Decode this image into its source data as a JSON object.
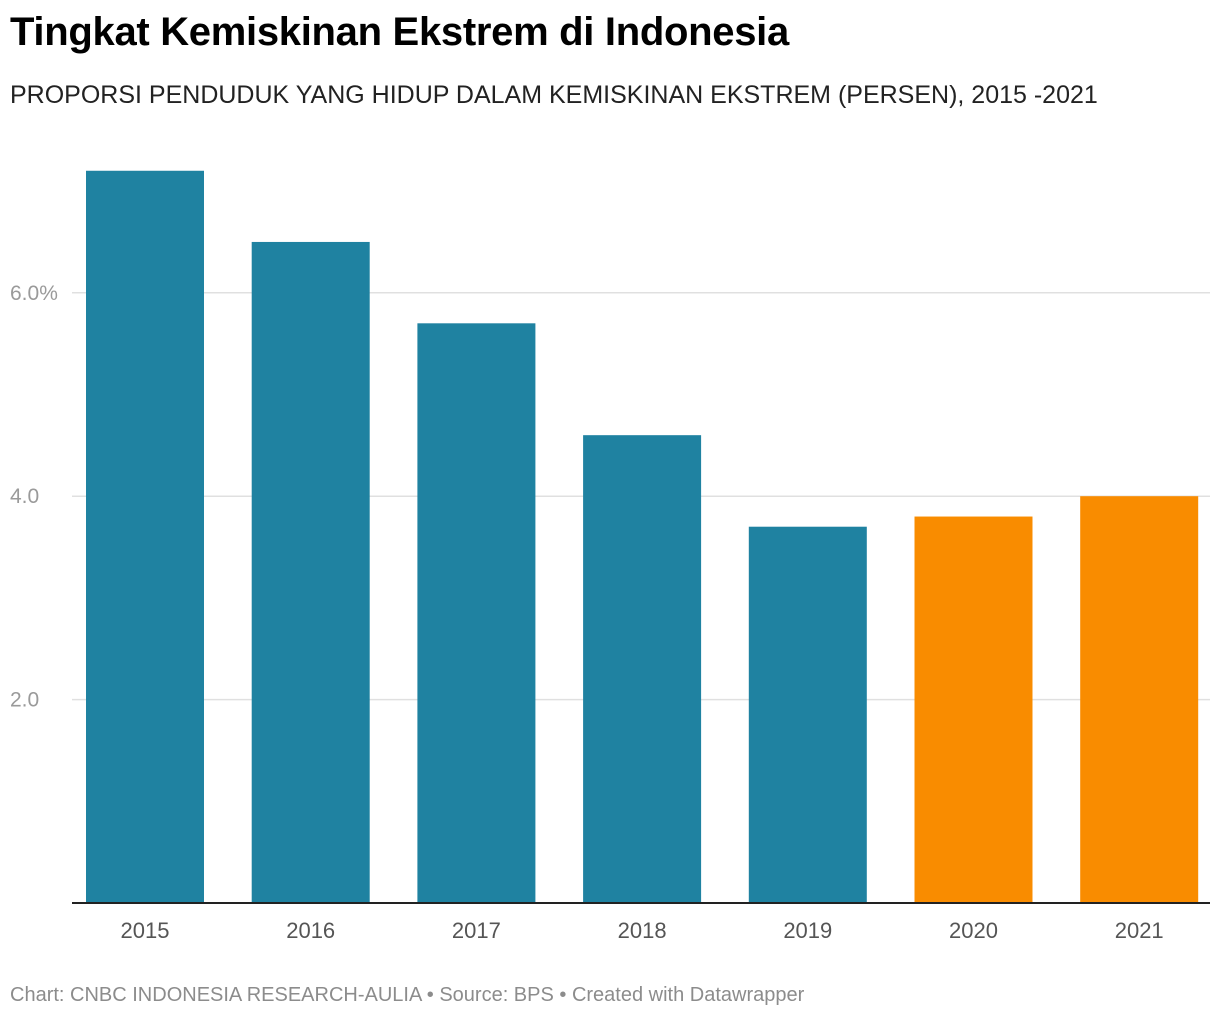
{
  "header": {
    "title": "Tingkat Kemiskinan Ekstrem di Indonesia",
    "subtitle": "PROPORSI PENDUDUK YANG HIDUP DALAM KEMISKINAN EKSTREM (PERSEN), 2015 -2021"
  },
  "footer": {
    "text": "Chart: CNBC INDONESIA RESEARCH-AULIA • Source: BPS • Created with Datawrapper"
  },
  "chart_data": {
    "type": "bar",
    "title": "Tingkat Kemiskinan Ekstrem di Indonesia",
    "subtitle": "PROPORSI PENDUDUK YANG HIDUP DALAM KEMISKINAN EKSTREM (PERSEN), 2015 -2021",
    "categories": [
      "2015",
      "2016",
      "2017",
      "2018",
      "2019",
      "2020",
      "2021"
    ],
    "values": [
      7.2,
      6.5,
      5.7,
      4.6,
      3.7,
      3.8,
      4.0
    ],
    "colors": [
      "#1f82a1",
      "#1f82a1",
      "#1f82a1",
      "#1f82a1",
      "#1f82a1",
      "#f98c00",
      "#f98c00"
    ],
    "ylim": [
      0,
      7.2
    ],
    "yticks": [
      {
        "value": 2,
        "label": "2.0"
      },
      {
        "value": 4,
        "label": "4.0"
      },
      {
        "value": 6,
        "label": "6.0%"
      }
    ],
    "gridlines": true,
    "xlabel": "",
    "ylabel": ""
  }
}
